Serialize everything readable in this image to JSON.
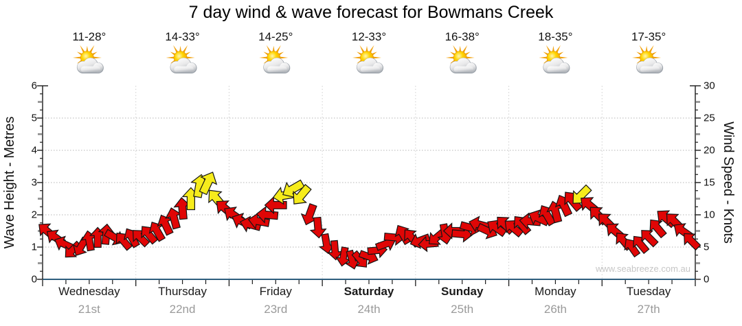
{
  "title": "7 day wind & wave forecast for Bowmans Creek",
  "watermark": "www.seabreeze.com.au",
  "days": [
    {
      "name": "Wednesday",
      "date": "21st",
      "temp": "11-28°",
      "icon": "sun-cloud",
      "bold": false
    },
    {
      "name": "Thursday",
      "date": "22nd",
      "temp": "14-33°",
      "icon": "sun-cloud",
      "bold": false
    },
    {
      "name": "Friday",
      "date": "23rd",
      "temp": "14-25°",
      "icon": "sun-cloud",
      "bold": false
    },
    {
      "name": "Saturday",
      "date": "24th",
      "temp": "12-33°",
      "icon": "sun-cloud",
      "bold": true
    },
    {
      "name": "Sunday",
      "date": "25th",
      "temp": "16-38°",
      "icon": "sun-cloud",
      "bold": true
    },
    {
      "name": "Monday",
      "date": "26th",
      "temp": "18-35°",
      "icon": "sun-cloud",
      "bold": false
    },
    {
      "name": "Tuesday",
      "date": "27th",
      "temp": "17-35°",
      "icon": "sun-cloud",
      "bold": false
    }
  ],
  "colors": {
    "arrow_red": "#e00606",
    "arrow_yellow": "#f6ec1c",
    "arrow_outline": "#141414",
    "baseline_navy": "#2e5e7e",
    "grid": "#b5b5b5",
    "day_divider": "#cfcfcf",
    "tick": "#1a1a1a",
    "minor_dash_gray": "#9a9a9a",
    "date_text": "#9a9a9a",
    "watermark_text": "#c6c6c6"
  },
  "chart_data": {
    "type": "wind-arrow-timeseries",
    "title": "7 day wind & wave forecast for Bowmans Creek",
    "x_days": [
      "Wednesday 21st",
      "Thursday 22nd",
      "Friday 23rd",
      "Saturday 24th",
      "Sunday 25th",
      "Monday 26th",
      "Tuesday 27th"
    ],
    "left_axis": {
      "label": "Wave Height - Metres",
      "range": [
        0,
        6
      ],
      "ticks": [
        0,
        1,
        2,
        3,
        4,
        5,
        6
      ]
    },
    "right_axis": {
      "label": "Wind Speed - Knots",
      "range": [
        0,
        30
      ],
      "ticks": [
        0,
        5,
        10,
        15,
        20,
        25,
        30
      ]
    },
    "grid": "horizontal dotted at 1-5 m, vertical dotted at day boundaries",
    "yellow_threshold_knots": 12.5,
    "arrows_format": [
      "t_days",
      "speed_knots",
      "direction_deg_0_is_up"
    ],
    "arrows": [
      [
        0.045,
        7.5,
        -50
      ],
      [
        0.136,
        6.5,
        -55
      ],
      [
        0.227,
        5.5,
        -65
      ],
      [
        0.318,
        4.5,
        -135
      ],
      [
        0.409,
        5,
        -150
      ],
      [
        0.5,
        6,
        -10
      ],
      [
        0.591,
        6.5,
        0
      ],
      [
        0.682,
        7,
        5
      ],
      [
        0.773,
        6.5,
        120
      ],
      [
        0.864,
        6,
        -40
      ],
      [
        0.955,
        6.5,
        -30
      ],
      [
        1.045,
        6.5,
        -45
      ],
      [
        1.136,
        7,
        -40
      ],
      [
        1.227,
        7.5,
        -30
      ],
      [
        1.318,
        8.5,
        -25
      ],
      [
        1.409,
        9.5,
        -15
      ],
      [
        1.5,
        11,
        -5
      ],
      [
        1.591,
        12.5,
        0
      ],
      [
        1.682,
        14.5,
        10
      ],
      [
        1.773,
        15,
        25
      ],
      [
        1.864,
        12.5,
        -40
      ],
      [
        1.955,
        11,
        -50
      ],
      [
        2.045,
        10,
        -55
      ],
      [
        2.136,
        9,
        -65
      ],
      [
        2.227,
        8.5,
        -75
      ],
      [
        2.318,
        9,
        -80
      ],
      [
        2.409,
        10,
        -85
      ],
      [
        2.5,
        11.5,
        -90
      ],
      [
        2.591,
        13,
        -100
      ],
      [
        2.682,
        14,
        -120
      ],
      [
        2.773,
        13,
        -140
      ],
      [
        2.864,
        10,
        -160
      ],
      [
        2.955,
        8,
        175
      ],
      [
        3.045,
        5.5,
        170
      ],
      [
        3.136,
        4.5,
        175
      ],
      [
        3.227,
        3.5,
        -170
      ],
      [
        3.318,
        3,
        165
      ],
      [
        3.409,
        3,
        140
      ],
      [
        3.5,
        3.5,
        110
      ],
      [
        3.591,
        4.5,
        85
      ],
      [
        3.682,
        5.5,
        70
      ],
      [
        3.773,
        6.5,
        95
      ],
      [
        3.864,
        7,
        -30
      ],
      [
        3.955,
        6.5,
        -40
      ],
      [
        4.045,
        6,
        -110
      ],
      [
        4.136,
        5.5,
        -95
      ],
      [
        4.227,
        6.5,
        -130
      ],
      [
        4.318,
        7,
        170
      ],
      [
        4.409,
        7.5,
        -90
      ],
      [
        4.5,
        7,
        95
      ],
      [
        4.591,
        8,
        105
      ],
      [
        4.682,
        8.5,
        -75
      ],
      [
        4.773,
        7.5,
        115
      ],
      [
        4.864,
        8,
        -55
      ],
      [
        4.955,
        8.5,
        -45
      ],
      [
        5.045,
        8,
        -50
      ],
      [
        5.136,
        8.5,
        -40
      ],
      [
        5.227,
        9,
        -85
      ],
      [
        5.318,
        9.5,
        -65
      ],
      [
        5.409,
        10,
        -30
      ],
      [
        5.5,
        10.5,
        -15
      ],
      [
        5.591,
        11.5,
        -25
      ],
      [
        5.682,
        12.2,
        -40
      ],
      [
        5.773,
        13,
        -135
      ],
      [
        5.864,
        11.5,
        -50
      ],
      [
        5.955,
        10,
        -45
      ],
      [
        6.045,
        9,
        -45
      ],
      [
        6.136,
        7.5,
        -50
      ],
      [
        6.227,
        6,
        -40
      ],
      [
        6.318,
        5,
        -35
      ],
      [
        6.409,
        5.5,
        -40
      ],
      [
        6.5,
        6.5,
        -45
      ],
      [
        6.591,
        8,
        -40
      ],
      [
        6.682,
        9.5,
        -50
      ],
      [
        6.773,
        9,
        -45
      ],
      [
        6.864,
        7.5,
        -55
      ],
      [
        6.955,
        6,
        -45
      ]
    ]
  }
}
